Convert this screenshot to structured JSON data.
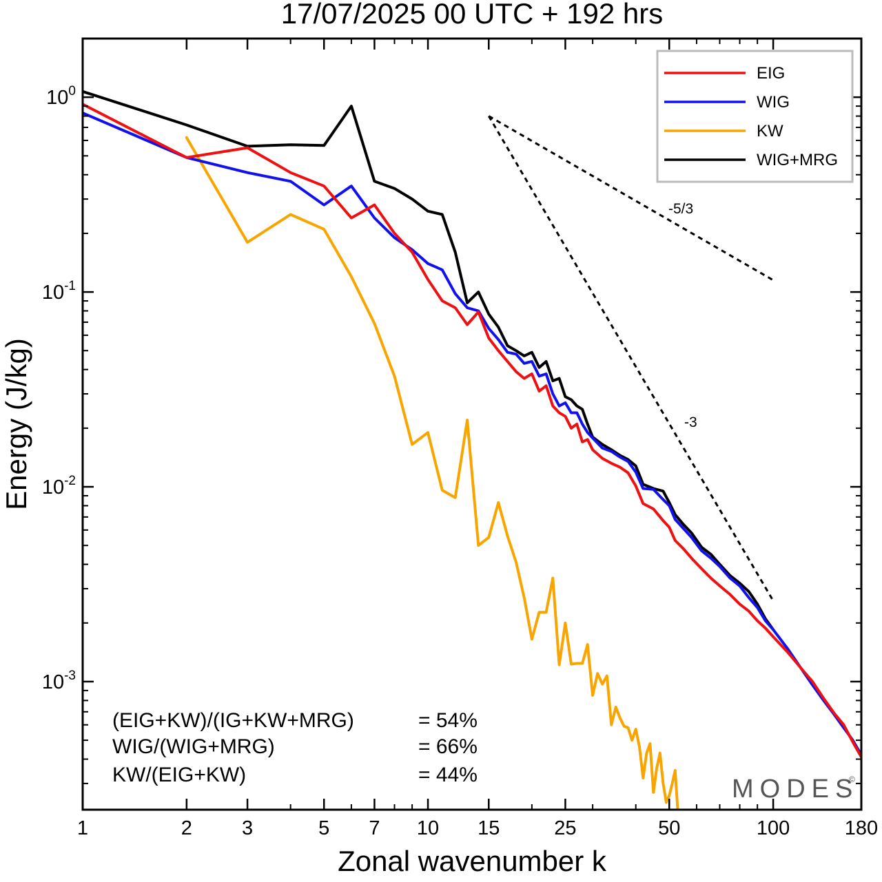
{
  "chart_data": {
    "type": "line",
    "title": "17/07/2025  00 UTC  + 192 hrs",
    "xlabel": "Zonal wavenumber k",
    "ylabel": "Energy (J/kg)",
    "xscale": "log",
    "yscale": "log",
    "xlim": [
      1,
      180
    ],
    "ylim": [
      0.00022,
      2.0
    ],
    "x_ticks": [
      "1",
      "2",
      "3",
      "5",
      "7",
      "10",
      "15",
      "25",
      "50",
      "100",
      "180"
    ],
    "y_ticks": [
      {
        "base": "10",
        "exp": "0",
        "value": 1
      },
      {
        "base": "10",
        "exp": "-1",
        "value": 0.1
      },
      {
        "base": "10",
        "exp": "-2",
        "value": 0.01
      },
      {
        "base": "10",
        "exp": "-3",
        "value": 0.001
      }
    ],
    "grid": false,
    "legend_position": "top-right",
    "series": [
      {
        "name": "EIG",
        "color": "#ee1111",
        "points": [
          [
            1,
            0.92
          ],
          [
            2,
            0.49
          ],
          [
            3,
            0.55
          ],
          [
            4,
            0.41
          ],
          [
            5,
            0.35
          ],
          [
            6,
            0.24
          ],
          [
            7,
            0.28
          ],
          [
            8,
            0.2
          ],
          [
            9,
            0.16
          ],
          [
            10,
            0.116
          ],
          [
            11,
            0.09
          ],
          [
            12,
            0.083
          ],
          [
            13,
            0.068
          ],
          [
            14,
            0.079
          ],
          [
            15,
            0.058
          ],
          [
            16,
            0.05
          ],
          [
            17,
            0.044
          ],
          [
            18,
            0.039
          ],
          [
            19,
            0.036
          ],
          [
            20,
            0.038
          ],
          [
            21,
            0.031
          ],
          [
            22,
            0.033
          ],
          [
            23,
            0.026
          ],
          [
            24,
            0.024
          ],
          [
            25,
            0.023
          ],
          [
            26,
            0.02
          ],
          [
            27,
            0.021
          ],
          [
            28,
            0.017
          ],
          [
            29,
            0.0175
          ],
          [
            30,
            0.0155
          ],
          [
            32,
            0.014
          ],
          [
            34,
            0.0132
          ],
          [
            36,
            0.0126
          ],
          [
            38,
            0.0118
          ],
          [
            40,
            0.0101
          ],
          [
            42,
            0.0082
          ],
          [
            45,
            0.0077
          ],
          [
            48,
            0.0067
          ],
          [
            50,
            0.0062
          ],
          [
            52,
            0.0053
          ],
          [
            55,
            0.0048
          ],
          [
            58,
            0.0043
          ],
          [
            62,
            0.0038
          ],
          [
            66,
            0.0034
          ],
          [
            70,
            0.0031
          ],
          [
            75,
            0.0028
          ],
          [
            80,
            0.0025
          ],
          [
            85,
            0.0023
          ],
          [
            90,
            0.00205
          ],
          [
            95,
            0.00188
          ],
          [
            100,
            0.0017
          ],
          [
            110,
            0.00142
          ],
          [
            120,
            0.00118
          ],
          [
            130,
            0.001
          ],
          [
            140,
            0.00082
          ],
          [
            150,
            0.00069
          ],
          [
            160,
            0.0006
          ],
          [
            170,
            0.00049
          ],
          [
            180,
            0.00041
          ]
        ]
      },
      {
        "name": "WIG",
        "color": "#1111ee",
        "points": [
          [
            1,
            0.83
          ],
          [
            2,
            0.49
          ],
          [
            3,
            0.41
          ],
          [
            4,
            0.37
          ],
          [
            5,
            0.28
          ],
          [
            6,
            0.35
          ],
          [
            7,
            0.24
          ],
          [
            8,
            0.19
          ],
          [
            9,
            0.165
          ],
          [
            10,
            0.14
          ],
          [
            11,
            0.13
          ],
          [
            12,
            0.098
          ],
          [
            13,
            0.083
          ],
          [
            14,
            0.08
          ],
          [
            15,
            0.065
          ],
          [
            16,
            0.057
          ],
          [
            17,
            0.049
          ],
          [
            18,
            0.048
          ],
          [
            19,
            0.043
          ],
          [
            20,
            0.044
          ],
          [
            21,
            0.037
          ],
          [
            22,
            0.038
          ],
          [
            23,
            0.03
          ],
          [
            24,
            0.026
          ],
          [
            25,
            0.027
          ],
          [
            26,
            0.024
          ],
          [
            27,
            0.024
          ],
          [
            28,
            0.021
          ],
          [
            29,
            0.019
          ],
          [
            30,
            0.0178
          ],
          [
            32,
            0.0158
          ],
          [
            34,
            0.0152
          ],
          [
            36,
            0.0142
          ],
          [
            38,
            0.0135
          ],
          [
            40,
            0.0119
          ],
          [
            42,
            0.0098
          ],
          [
            45,
            0.0097
          ],
          [
            48,
            0.0086
          ],
          [
            50,
            0.008
          ],
          [
            52,
            0.0068
          ],
          [
            55,
            0.0061
          ],
          [
            58,
            0.0055
          ],
          [
            62,
            0.0047
          ],
          [
            66,
            0.0043
          ],
          [
            70,
            0.0039
          ],
          [
            75,
            0.0034
          ],
          [
            80,
            0.0031
          ],
          [
            85,
            0.0027
          ],
          [
            90,
            0.0024
          ],
          [
            95,
            0.00205
          ],
          [
            100,
            0.00185
          ],
          [
            110,
            0.00148
          ],
          [
            120,
            0.00118
          ],
          [
            130,
            0.00096
          ],
          [
            140,
            0.0008
          ],
          [
            150,
            0.00068
          ],
          [
            160,
            0.00058
          ],
          [
            170,
            0.0005
          ],
          [
            180,
            0.00042
          ]
        ]
      },
      {
        "name": "KW",
        "color": "#f8a500",
        "points": [
          [
            2,
            0.62
          ],
          [
            3,
            0.18
          ],
          [
            4,
            0.25
          ],
          [
            5,
            0.21
          ],
          [
            6,
            0.12
          ],
          [
            7,
            0.069
          ],
          [
            8,
            0.037
          ],
          [
            9,
            0.0165
          ],
          [
            10,
            0.019
          ],
          [
            11,
            0.0096
          ],
          [
            12,
            0.0088
          ],
          [
            13,
            0.022
          ],
          [
            14,
            0.005
          ],
          [
            15,
            0.0055
          ],
          [
            16,
            0.0083
          ],
          [
            17,
            0.0056
          ],
          [
            18,
            0.0041
          ],
          [
            19,
            0.0027
          ],
          [
            20,
            0.00165
          ],
          [
            21,
            0.00227
          ],
          [
            22,
            0.00227
          ],
          [
            23,
            0.0034
          ],
          [
            24,
            0.00122
          ],
          [
            25,
            0.002
          ],
          [
            26,
            0.00123
          ],
          [
            27,
            0.00124
          ],
          [
            28,
            0.00124
          ],
          [
            29,
            0.00155
          ],
          [
            30,
            0.00085
          ],
          [
            31,
            0.0011
          ],
          [
            32,
            0.00097
          ],
          [
            33,
            0.00107
          ],
          [
            34,
            0.0006
          ],
          [
            35,
            0.00074
          ],
          [
            36,
            0.00065
          ],
          [
            37,
            0.00059
          ],
          [
            38,
            0.00058
          ],
          [
            39,
            0.0005
          ],
          [
            40,
            0.00057
          ],
          [
            41,
            0.00046
          ],
          [
            42,
            0.00032
          ],
          [
            43,
            0.00043
          ],
          [
            44,
            0.00048
          ],
          [
            45,
            0.00027
          ],
          [
            46,
            0.00036
          ],
          [
            47,
            0.00043
          ],
          [
            48,
            0.0003
          ],
          [
            49,
            0.00024
          ],
          [
            50,
            0.00026
          ],
          [
            51,
            0.0003
          ],
          [
            52,
            0.00035
          ],
          [
            53,
            0.00021
          ]
        ]
      },
      {
        "name": "WIG+MRG",
        "color": "#000000",
        "points": [
          [
            1,
            1.07
          ],
          [
            2,
            0.72
          ],
          [
            3,
            0.56
          ],
          [
            4,
            0.57
          ],
          [
            5,
            0.565
          ],
          [
            6,
            0.9
          ],
          [
            7,
            0.37
          ],
          [
            8,
            0.34
          ],
          [
            9,
            0.3
          ],
          [
            10,
            0.26
          ],
          [
            11,
            0.25
          ],
          [
            12,
            0.16
          ],
          [
            13,
            0.088
          ],
          [
            14,
            0.1
          ],
          [
            15,
            0.077
          ],
          [
            16,
            0.066
          ],
          [
            17,
            0.053
          ],
          [
            18,
            0.05
          ],
          [
            19,
            0.047
          ],
          [
            20,
            0.049
          ],
          [
            21,
            0.041
          ],
          [
            22,
            0.044
          ],
          [
            23,
            0.035
          ],
          [
            24,
            0.036
          ],
          [
            25,
            0.029
          ],
          [
            26,
            0.028
          ],
          [
            27,
            0.026
          ],
          [
            28,
            0.025
          ],
          [
            29,
            0.021
          ],
          [
            30,
            0.018
          ],
          [
            32,
            0.0165
          ],
          [
            34,
            0.0155
          ],
          [
            36,
            0.0145
          ],
          [
            38,
            0.0138
          ],
          [
            40,
            0.0128
          ],
          [
            42,
            0.0103
          ],
          [
            45,
            0.0098
          ],
          [
            48,
            0.0095
          ],
          [
            50,
            0.0083
          ],
          [
            52,
            0.0072
          ],
          [
            55,
            0.0064
          ],
          [
            58,
            0.0058
          ],
          [
            62,
            0.0049
          ],
          [
            66,
            0.0045
          ],
          [
            70,
            0.004
          ],
          [
            75,
            0.0035
          ],
          [
            80,
            0.0032
          ],
          [
            85,
            0.0029
          ],
          [
            90,
            0.0025
          ],
          [
            95,
            0.0021
          ],
          [
            100,
            0.00185
          ]
        ]
      }
    ],
    "reference_slopes": [
      {
        "label": "-5/3",
        "slope": -1.6667,
        "from": [
          15,
          0.8
        ],
        "to": [
          100,
          0.115
        ]
      },
      {
        "label": "-3",
        "slope": -3,
        "from": [
          15,
          0.8
        ],
        "to": [
          100,
          0.0026
        ]
      }
    ],
    "annotations": [
      {
        "label": "(EIG+KW)/(IG+KW+MRG)",
        "value": "= 54%"
      },
      {
        "label": "WIG/(WIG+MRG)",
        "value": "= 66%"
      },
      {
        "label": "KW/(EIG+KW)",
        "value": "= 44%"
      }
    ],
    "brand": "MODES",
    "brand_mark": "©"
  }
}
